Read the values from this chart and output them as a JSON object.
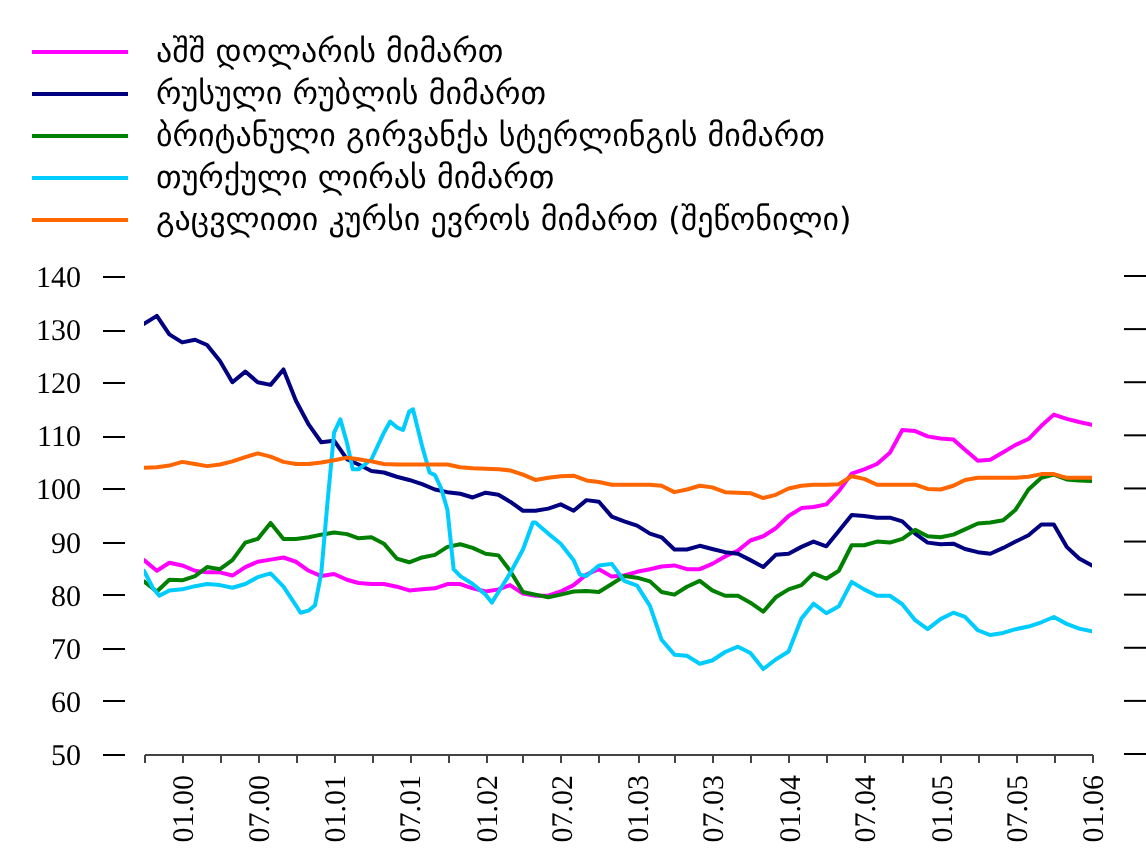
{
  "chart_data": {
    "type": "line",
    "x": [
      "1999-10",
      "1999-11",
      "1999-12",
      "2000-01",
      "2000-02",
      "2000-03",
      "2000-04",
      "2000-05",
      "2000-06",
      "2000-07",
      "2000-08",
      "2000-09",
      "2000-10",
      "2000-11",
      "2000-12",
      "2001-01",
      "2001-02",
      "2001-03",
      "2001-04",
      "2001-05",
      "2001-06",
      "2001-07",
      "2001-08",
      "2001-09",
      "2001-10",
      "2001-11",
      "2001-12",
      "2002-01",
      "2002-02",
      "2002-03",
      "2002-04",
      "2002-05",
      "2002-06",
      "2002-07",
      "2002-08",
      "2002-09",
      "2002-10",
      "2002-11",
      "2002-12",
      "2003-01",
      "2003-02",
      "2003-03",
      "2003-04",
      "2003-05",
      "2003-06",
      "2003-07",
      "2003-08",
      "2003-09",
      "2003-10",
      "2003-11",
      "2003-12",
      "2004-01",
      "2004-02",
      "2004-03",
      "2004-04",
      "2004-05",
      "2004-06",
      "2004-07",
      "2004-08",
      "2004-09",
      "2004-10",
      "2004-11",
      "2004-12",
      "2005-01",
      "2005-02",
      "2005-03",
      "2005-04",
      "2005-05",
      "2005-06",
      "2005-07",
      "2005-08",
      "2005-09",
      "2005-10",
      "2005-11",
      "2005-12",
      "2006-01"
    ],
    "series": [
      {
        "name": "აშშ დოლარის მიმართ",
        "color": "#ff00ff",
        "values": [
          86.5,
          84.5,
          86,
          85.5,
          84.5,
          84.2,
          84.2,
          83.6,
          85.2,
          86.2,
          86.6,
          87,
          86.2,
          84.5,
          83.5,
          83.9,
          82.8,
          82.2,
          82,
          82,
          81.5,
          80.8,
          81,
          81.2,
          82,
          82,
          81.2,
          80.6,
          81,
          81.8,
          80.2,
          79.8,
          79.8,
          80.6,
          81.8,
          83.8,
          84.8,
          83.4,
          83.6,
          84.3,
          84.8,
          85.3,
          85.5,
          84.8,
          84.8,
          85.8,
          87.2,
          88.3,
          90.2,
          91,
          92.5,
          94.8,
          96.3,
          96.5,
          97,
          99.5,
          102.8,
          103.6,
          104.6,
          106.7,
          111,
          110.8,
          109.8,
          109.4,
          109.2,
          107.3,
          105.2,
          105.4,
          106.8,
          108.2,
          109.3,
          111.8,
          113.9,
          113.1,
          112.5,
          112
        ]
      },
      {
        "name": "რუსული რუბლის მიმართ",
        "color": "#000080",
        "values": [
          131,
          132.5,
          129,
          127.5,
          128,
          127,
          124,
          120,
          122,
          120,
          119.5,
          122.4,
          116.5,
          112,
          108.7,
          109,
          105.5,
          104.5,
          103.3,
          103,
          102.2,
          101.6,
          100.8,
          99.8,
          99.3,
          99,
          98.3,
          99.2,
          98.8,
          97.5,
          95.8,
          95.8,
          96.2,
          97,
          95.8,
          97.8,
          97.5,
          94.7,
          93.8,
          93,
          91.5,
          90.8,
          88.5,
          88.5,
          89.2,
          88.6,
          88,
          87.7,
          86.5,
          85.2,
          87.5,
          87.7,
          89,
          90,
          89.1,
          92,
          95,
          94.8,
          94.5,
          94.5,
          93.8,
          91.5,
          89.8,
          89.5,
          89.6,
          88.6,
          88,
          87.7,
          88.8,
          90,
          91.2,
          93.2,
          93.2,
          89,
          86.8,
          85.5
        ]
      },
      {
        "name": "ბრიტანული გირვანქა სტერლინგის მიმართ",
        "color": "#008000",
        "values": [
          82.5,
          80.6,
          82.8,
          82.7,
          83.5,
          85.2,
          84.8,
          86.5,
          89.8,
          90.5,
          93.5,
          90.5,
          90.5,
          90.8,
          91.3,
          91.7,
          91.4,
          90.6,
          90.8,
          89.6,
          86.8,
          86.1,
          87,
          87.5,
          89,
          89.5,
          88.8,
          87.7,
          87.4,
          84.5,
          80.5,
          80,
          79.5,
          80,
          80.6,
          80.7,
          80.5,
          82,
          83.5,
          83.2,
          82.5,
          80.5,
          80,
          81.5,
          82.6,
          80.8,
          79.8,
          79.8,
          78.5,
          76.8,
          79.5,
          81,
          81.8,
          84,
          83,
          84.5,
          89.3,
          89.3,
          90,
          89.8,
          90.5,
          92.2,
          91,
          90.8,
          91.3,
          92.3,
          93.4,
          93.6,
          94,
          96,
          99.8,
          102,
          102.6,
          101.7,
          101.5,
          101.4
        ]
      },
      {
        "name": "თურქული ლირას მიმართ",
        "color": "#00ccff",
        "x": [
          "1999-10-01",
          "1999-10-22",
          "1999-11-07",
          "1999-12-01",
          "2000-01-01",
          "2000-02-01",
          "2000-03-01",
          "2000-04-01",
          "2000-05-01",
          "2000-06-01",
          "2000-07-01",
          "2000-08-01",
          "2000-09-01",
          "2000-10-01",
          "2000-10-12",
          "2000-11-01",
          "2000-11-16",
          "2000-12-01",
          "2000-12-16",
          "2001-01-01",
          "2001-01-16",
          "2001-02-01",
          "2001-02-15",
          "2001-03-01",
          "2001-04-01",
          "2001-05-01",
          "2001-05-16",
          "2001-06-01",
          "2001-06-16",
          "2001-07-01",
          "2001-07-10",
          "2001-08-01",
          "2001-08-19",
          "2001-09-01",
          "2001-09-16",
          "2001-10-01",
          "2001-10-16",
          "2001-11-01",
          "2001-12-01",
          "2002-01-01",
          "2002-01-16",
          "2002-02-01",
          "2002-03-01",
          "2002-04-01",
          "2002-04-25",
          "2002-05-01",
          "2002-06-01",
          "2002-07-01",
          "2002-08-01",
          "2002-08-16",
          "2002-09-01",
          "2002-10-01",
          "2002-11-01",
          "2002-12-01",
          "2003-01-01",
          "2003-02-01",
          "2003-03-01",
          "2003-04-01",
          "2003-05-01",
          "2003-06-01",
          "2003-07-01",
          "2003-08-01",
          "2003-09-01",
          "2003-10-01",
          "2003-11-01",
          "2003-12-01",
          "2004-01-01",
          "2004-02-01",
          "2004-03-01",
          "2004-04-01",
          "2004-05-01",
          "2004-06-01",
          "2004-07-01",
          "2004-08-01",
          "2004-09-01",
          "2004-10-01",
          "2004-11-01",
          "2004-12-01",
          "2005-01-01",
          "2005-02-01",
          "2005-03-01",
          "2005-04-01",
          "2005-05-01",
          "2005-06-01",
          "2005-07-01",
          "2005-08-01",
          "2005-09-01",
          "2005-10-01",
          "2005-11-01",
          "2005-12-01",
          "2006-01-01"
        ],
        "values": [
          84.5,
          81.3,
          79.8,
          80.8,
          81,
          81.6,
          82,
          81.8,
          81.3,
          82,
          83.3,
          84,
          81.5,
          78,
          76.6,
          77,
          78,
          84,
          97.3,
          110.5,
          113,
          108.6,
          103.6,
          103.6,
          105.5,
          110.5,
          112.6,
          111.5,
          111,
          114.5,
          114.9,
          108,
          103,
          102.5,
          100,
          96,
          84.8,
          83.5,
          82,
          80,
          78.5,
          80.5,
          84,
          88.5,
          93.6,
          93.6,
          91.5,
          89.6,
          86.5,
          83.8,
          83.5,
          85.5,
          85.8,
          82.6,
          81.7,
          77.9,
          71.5,
          68.7,
          68.5,
          67,
          67.6,
          69.2,
          70.2,
          69,
          66,
          67.8,
          69.3,
          75.5,
          78.3,
          76.5,
          77.8,
          82.4,
          81,
          79.8,
          79.8,
          78.2,
          75.2,
          73.5,
          75.4,
          76.6,
          75.8,
          73.3,
          72.4,
          72.8,
          73.5,
          74,
          74.8,
          75.8,
          74.5,
          73.6,
          73.1
        ]
      },
      {
        "name": "გაცვლითი კურსი ევროს მიმართ (შეწონილი)",
        "color": "#ff6600",
        "values": [
          103.9,
          104,
          104.3,
          105,
          104.6,
          104.2,
          104.5,
          105.1,
          105.9,
          106.6,
          106,
          105,
          104.6,
          104.6,
          104.9,
          105.3,
          105.8,
          105.5,
          105.1,
          104.6,
          104.5,
          104.5,
          104.5,
          104.5,
          104.5,
          104,
          103.8,
          103.7,
          103.6,
          103.4,
          102.6,
          101.6,
          102,
          102.3,
          102.4,
          101.5,
          101.2,
          100.7,
          100.7,
          100.7,
          100.7,
          100.5,
          99.3,
          99.8,
          100.5,
          100.2,
          99.3,
          99.2,
          99.1,
          98.2,
          98.8,
          100,
          100.5,
          100.7,
          100.7,
          100.8,
          102.3,
          101.8,
          100.7,
          100.7,
          100.7,
          100.7,
          99.9,
          99.8,
          100.5,
          101.6,
          102,
          102,
          102,
          102,
          102.2,
          102.7,
          102.7,
          102,
          102,
          102
        ]
      }
    ],
    "xlim": [
      "1999-10",
      "2006-01"
    ],
    "xticks": [
      {
        "value": "1999-10",
        "label": null
      },
      {
        "value": "2000-01",
        "label": "01.00"
      },
      {
        "value": "2000-04",
        "label": null
      },
      {
        "value": "2000-07",
        "label": "07.00"
      },
      {
        "value": "2000-10",
        "label": null
      },
      {
        "value": "2001-01",
        "label": "01.01"
      },
      {
        "value": "2001-04",
        "label": null
      },
      {
        "value": "2001-07",
        "label": "07.01"
      },
      {
        "value": "2001-10",
        "label": null
      },
      {
        "value": "2002-01",
        "label": "01.02"
      },
      {
        "value": "2002-04",
        "label": null
      },
      {
        "value": "2002-07",
        "label": "07.02"
      },
      {
        "value": "2002-10",
        "label": null
      },
      {
        "value": "2003-01",
        "label": "01.03"
      },
      {
        "value": "2003-04",
        "label": null
      },
      {
        "value": "2003-07",
        "label": "07.03"
      },
      {
        "value": "2003-10",
        "label": null
      },
      {
        "value": "2004-01",
        "label": "01.04"
      },
      {
        "value": "2004-04",
        "label": null
      },
      {
        "value": "2004-07",
        "label": "07.04"
      },
      {
        "value": "2004-10",
        "label": null
      },
      {
        "value": "2005-01",
        "label": "01.05"
      },
      {
        "value": "2005-04",
        "label": null
      },
      {
        "value": "2005-07",
        "label": "07.05"
      },
      {
        "value": "2005-10",
        "label": null
      },
      {
        "value": "2006-01",
        "label": "01.06"
      }
    ],
    "ylim": [
      50,
      140
    ],
    "yticks": [
      50,
      60,
      70,
      80,
      90,
      100,
      110,
      120,
      130,
      140
    ],
    "legend": "top left"
  }
}
